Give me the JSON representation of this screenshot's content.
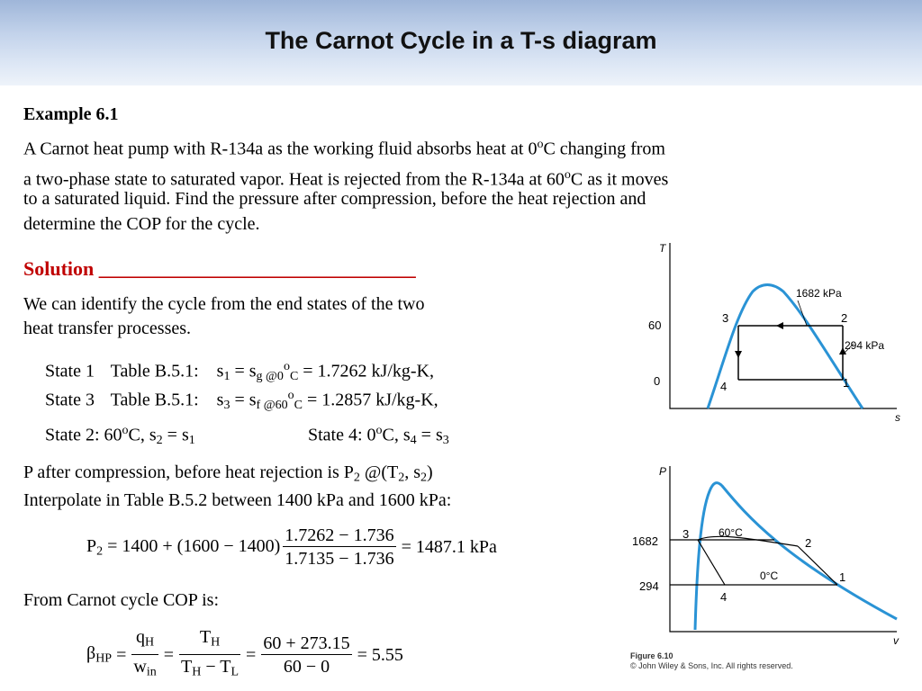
{
  "slide": {
    "title": "The Carnot Cycle in a T-s diagram"
  },
  "example": {
    "heading": "Example 6.1",
    "line1a": "A Carnot heat pump with R-134a as the working fluid absorbs heat at 0",
    "line1b": "C changing from",
    "line2a": "a two-phase state to saturated vapor. Heat is rejected from the R-134a at 60",
    "line2b": "C as it moves",
    "line3": "to a saturated liquid. Find the pressure after compression, before the heat rejection and",
    "line4": "determine the COP for the cycle."
  },
  "solution": {
    "label": "Solution ________________________________",
    "intro1": "We can identify the cycle from the end states of the two",
    "intro2": "heat transfer processes."
  },
  "states": [
    {
      "name": "State 1",
      "table": "Table B.5.1:",
      "s": "s",
      "sub1": "1",
      "eq": " = s",
      "sub2": "g @0",
      "sup": "o",
      "sub3": "C",
      "value": " = 1.7262 kJ/kg-K,"
    },
    {
      "name": "State 3",
      "table": "Table B.5.1:",
      "s": "s",
      "sub1": "3",
      "eq": " = s",
      "sub2": "f @60",
      "sup": "o",
      "sub3": "C",
      "value": " = 1.2857 kJ/kg-K,"
    }
  ],
  "state2": {
    "a": "State 2:  60",
    "b": "C, s",
    "c": " = s"
  },
  "state4": {
    "a": "State 4:   0",
    "b": "C,  s",
    "c": " = s"
  },
  "pressure": {
    "line1a": "P after compression, before heat rejection is P",
    "line1b": " @(T",
    "line1c": ", s",
    "line1d": ")",
    "line2": "Interpolate in Table B.5.2 between 1400 kPa and 1600 kPa:",
    "lhs": "P",
    "rhs": " = 1400 + (1600 − 1400)",
    "num": "1.7262 − 1.736",
    "den": "1.7135 − 1.736",
    "result": "= 1487.1 kPa"
  },
  "cop": {
    "label": "From Carnot cycle COP is:",
    "beta": "β",
    "beta_sub": "HP",
    "q": "q",
    "q_sub": "H",
    "w": "w",
    "w_sub": "in",
    "T": "T",
    "T_sub_H": "H",
    "T_sub_L": "L",
    "minus": " − ",
    "num": "60 + 273.15",
    "den": "60 − 0",
    "result": "= 5.55",
    "eq": "="
  },
  "ts_diagram": {
    "y_axis": "T",
    "x_axis": "s",
    "ticks": [
      "60",
      "0"
    ],
    "points": [
      "1",
      "2",
      "3",
      "4"
    ],
    "label_high_p": "1682 kPa",
    "label_low_p": "294 kPa"
  },
  "pv_diagram": {
    "y_axis": "P",
    "x_axis": "v",
    "ticks": [
      "1682",
      "294"
    ],
    "points": [
      "1",
      "2",
      "3",
      "4"
    ],
    "label_hot": "60°C",
    "label_cold": "0°C",
    "credit1": "Figure 6.10",
    "credit2": "© John Wiley & Sons, Inc. All rights reserved."
  },
  "colors": {
    "curve": "#2a93d5",
    "solution": "#c00000",
    "header_band": "#b8cbe6"
  }
}
